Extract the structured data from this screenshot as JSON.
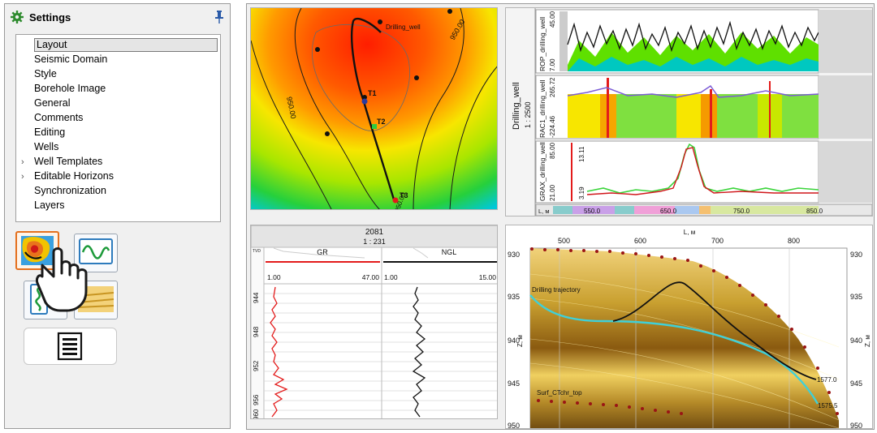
{
  "settings": {
    "title": "Settings",
    "tree": [
      {
        "label": "Layout",
        "expandable": false,
        "selected": true
      },
      {
        "label": "Seismic Domain",
        "expandable": false
      },
      {
        "label": "Style",
        "expandable": false
      },
      {
        "label": "Borehole Image",
        "expandable": false
      },
      {
        "label": "General",
        "expandable": false
      },
      {
        "label": "Comments",
        "expandable": false
      },
      {
        "label": "Editing",
        "expandable": false
      },
      {
        "label": "Wells",
        "expandable": false
      },
      {
        "label": "Well Templates",
        "expandable": true
      },
      {
        "label": "Editable Horizons",
        "expandable": true
      },
      {
        "label": "Synchronization",
        "expandable": false
      },
      {
        "label": "Layers",
        "expandable": false
      }
    ],
    "tool_icons": [
      "map-view-icon",
      "log-view-icon",
      "well-section-icon",
      "cross-section-icon",
      "list-view-icon",
      "pointer-hand-icon"
    ]
  },
  "map": {
    "well_name": "Drilling_well",
    "targets": [
      "T1",
      "T2",
      "T3"
    ],
    "contours": [
      "950.00",
      "950.00",
      "950.00"
    ],
    "colors": {
      "target_t2": "#2ecc40",
      "target_t3": "#e31b1b"
    }
  },
  "well_section": {
    "vertical_label": "Drilling_well",
    "scale": "1 : 2500",
    "tracks": [
      {
        "name": "ROP_drilling_well",
        "top": "45.00",
        "bottom": "7.00"
      },
      {
        "name": "RAC1_drilling_well",
        "top": "265.72",
        "bottom": "-224.46"
      },
      {
        "name": "GRAX_drilling_well",
        "top": "85.00",
        "bottom": "21.00",
        "extra_top": "13.11",
        "extra_bottom": "3.19"
      }
    ],
    "axis_corner": "L, м",
    "axis_ticks": [
      "550.0",
      "650.0",
      "750.0",
      "850.0"
    ]
  },
  "log_view": {
    "well": "2081",
    "scale": "1 : 231",
    "depth_header": "TVD",
    "curves": [
      {
        "name": "GR",
        "min": "1.00",
        "max": "47.00",
        "color": "#e31b1b"
      },
      {
        "name": "NGL",
        "min": "1.00",
        "max": "15.00",
        "color": "#111111"
      }
    ],
    "depths": [
      "944",
      "948",
      "952",
      "956",
      "960"
    ]
  },
  "cross_section": {
    "x_label": "L, м",
    "x_ticks": [
      "500",
      "600",
      "700",
      "800"
    ],
    "y_ticks": [
      "930",
      "935",
      "940",
      "945",
      "950"
    ],
    "y_label": "Z, м",
    "trajectory_label": "Drilling trajectory",
    "trajectory_label_overlap": "Drilling_well",
    "surface_label": "Surf_CTchr_top",
    "end_labels": [
      "1577.0",
      "1575.5"
    ]
  }
}
